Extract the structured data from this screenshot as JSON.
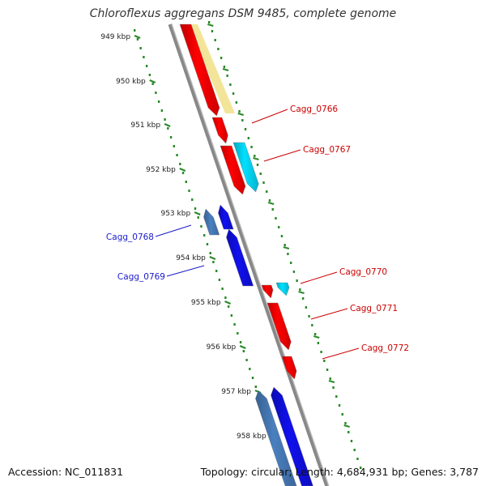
{
  "title": "Chloroflexus aggregans DSM 9485, complete genome",
  "footer": {
    "accession": "Accession: NC_011831",
    "topology": "Topology: circular; Length: 4,684,931 bp; Genes: 3,787"
  },
  "colors": {
    "backbone": "#888888",
    "ruler": "#2a8a2a",
    "forward_gene": "#ff0000",
    "forward_other": "#00e0ff",
    "reverse_gene": "#1010ee",
    "reverse_other": "#4a80c0",
    "highlight": "#f2e59a",
    "forward_label": "#cc0000",
    "reverse_label": "#1a1acc"
  },
  "ruler_ticks": [
    "949 kbp",
    "950 kbp",
    "951 kbp",
    "952 kbp",
    "953 kbp",
    "954 kbp",
    "955 kbp",
    "956 kbp",
    "957 kbp",
    "958 kbp"
  ],
  "gene_labels": [
    {
      "name": "Cagg_0766",
      "strand": "forward"
    },
    {
      "name": "Cagg_0767",
      "strand": "forward"
    },
    {
      "name": "Cagg_0768",
      "strand": "reverse"
    },
    {
      "name": "Cagg_0769",
      "strand": "reverse"
    },
    {
      "name": "Cagg_0770",
      "strand": "forward"
    },
    {
      "name": "Cagg_0771",
      "strand": "forward"
    },
    {
      "name": "Cagg_0772",
      "strand": "forward"
    }
  ]
}
